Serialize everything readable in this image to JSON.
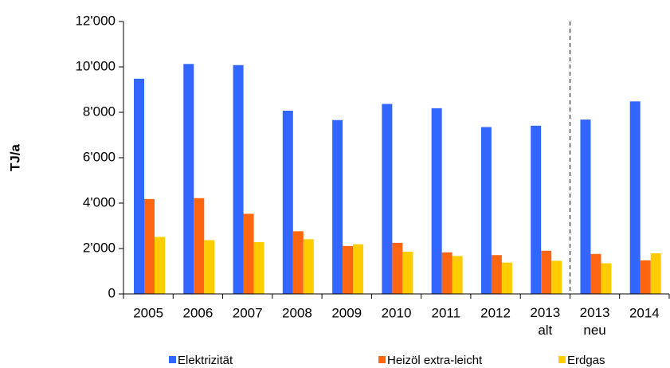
{
  "chart_data": {
    "type": "bar",
    "y_label": "TJ/a",
    "categories": [
      "2005",
      "2006",
      "2007",
      "2008",
      "2009",
      "2010",
      "2011",
      "2012",
      "2013 alt",
      "2013 neu",
      "2014"
    ],
    "series": [
      {
        "name": "Elektrizität",
        "color": "#3366ff",
        "values": [
          9480,
          10130,
          10080,
          8070,
          7660,
          8370,
          8180,
          7350,
          7410,
          7680,
          8480
        ]
      },
      {
        "name": "Heizöl extra-leicht",
        "color": "#ff6611",
        "values": [
          4180,
          4220,
          3530,
          2760,
          2110,
          2250,
          1830,
          1710,
          1900,
          1760,
          1480
        ]
      },
      {
        "name": "Erdgas",
        "color": "#ffcc00",
        "values": [
          2510,
          2370,
          2280,
          2410,
          2190,
          1860,
          1670,
          1380,
          1460,
          1350,
          1790
        ]
      }
    ],
    "ylim": [
      0,
      12000
    ],
    "yticks": [
      0,
      {
        "value": 2000,
        "label": "2'000"
      },
      {
        "value": 4000,
        "label": "4'000"
      },
      {
        "value": 6000,
        "label": "6'000"
      },
      {
        "value": 8000,
        "label": "8'000"
      },
      {
        "value": 10000,
        "label": "10'000"
      },
      {
        "value": 12000,
        "label": "12'000"
      }
    ],
    "legend": "bottom"
  }
}
